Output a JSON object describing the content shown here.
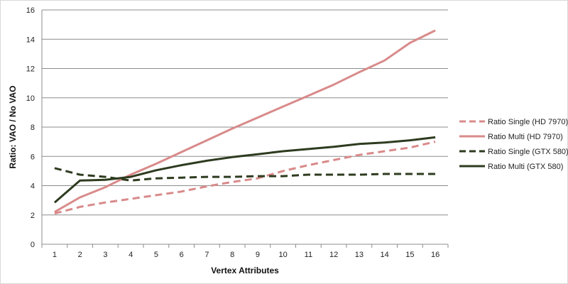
{
  "chart_data": {
    "type": "line",
    "title": "",
    "xlabel": "Vertex Attributes",
    "ylabel": "Ratio: VAO / No VAO",
    "x": [
      1,
      2,
      3,
      4,
      5,
      6,
      7,
      8,
      9,
      10,
      11,
      12,
      13,
      14,
      15,
      16
    ],
    "xlim": [
      0.5,
      16.5
    ],
    "ylim": [
      0,
      16
    ],
    "yticks": [
      0,
      2,
      4,
      6,
      8,
      10,
      12,
      14,
      16
    ],
    "grid": true,
    "legend_position": "right",
    "series": [
      {
        "name": "Ratio Single (HD 7970)",
        "color": "#D98A8A",
        "dash": "dashed",
        "values": [
          2.1,
          2.55,
          2.85,
          3.1,
          3.35,
          3.6,
          3.95,
          4.25,
          4.5,
          5.0,
          5.4,
          5.75,
          6.1,
          6.35,
          6.6,
          7.0
        ]
      },
      {
        "name": "Ratio Multi (HD 7970)",
        "color": "#D98A8A",
        "dash": "solid",
        "values": [
          2.2,
          3.2,
          3.9,
          4.75,
          5.5,
          6.3,
          7.1,
          7.9,
          8.65,
          9.4,
          10.15,
          10.9,
          11.75,
          12.55,
          13.75,
          14.6
        ]
      },
      {
        "name": "Ratio Single (GTX 580)",
        "color": "#2E3B1F",
        "dash": "dashed",
        "values": [
          5.2,
          4.75,
          4.6,
          4.35,
          4.5,
          4.55,
          4.6,
          4.6,
          4.65,
          4.65,
          4.75,
          4.75,
          4.75,
          4.8,
          4.8,
          4.8
        ]
      },
      {
        "name": "Ratio Multi (GTX 580)",
        "color": "#2E3B1F",
        "dash": "solid",
        "values": [
          2.85,
          4.35,
          4.4,
          4.6,
          5.05,
          5.4,
          5.7,
          5.95,
          6.15,
          6.35,
          6.5,
          6.65,
          6.85,
          6.95,
          7.1,
          7.3
        ]
      }
    ]
  }
}
